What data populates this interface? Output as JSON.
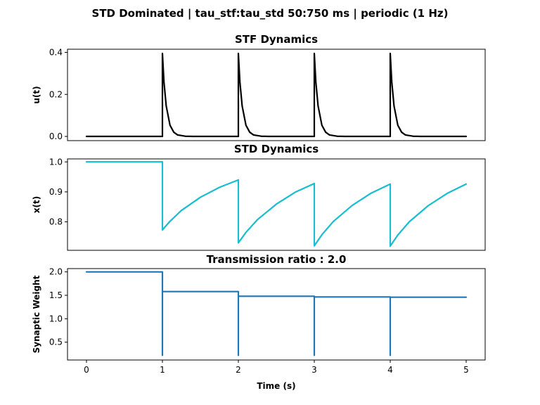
{
  "figure": {
    "title": "STD Dominated | tau_stf:tau_std 50:750 ms | periodic (1 Hz)"
  },
  "chart_data": [
    {
      "type": "line",
      "title": "STF Dynamics",
      "xlabel": "",
      "ylabel": "u(t)",
      "xlim": [
        -0.25,
        5.25
      ],
      "ylim": [
        -0.02,
        0.415
      ],
      "yticks": [
        0.0,
        0.2,
        0.4
      ],
      "ytick_labels": [
        "0.0",
        "0.2",
        "0.4"
      ],
      "xticks_visible": false,
      "grid": false,
      "color": "#000000",
      "spike_times": [
        1,
        2,
        3,
        4
      ],
      "x": [
        0,
        1,
        1,
        1.02,
        1.05,
        1.1,
        1.15,
        1.2,
        1.3,
        1.4,
        1.6,
        2,
        2,
        2.02,
        2.05,
        2.1,
        2.15,
        2.2,
        2.3,
        2.4,
        2.6,
        3,
        3,
        3.02,
        3.05,
        3.1,
        3.15,
        3.2,
        3.3,
        3.4,
        3.6,
        4,
        4,
        4.02,
        4.05,
        4.1,
        4.15,
        4.2,
        4.3,
        4.4,
        4.6,
        5
      ],
      "y": [
        0,
        0,
        0.395,
        0.26,
        0.145,
        0.053,
        0.02,
        0.007,
        0.001,
        0,
        0,
        0,
        0.395,
        0.26,
        0.145,
        0.053,
        0.02,
        0.007,
        0.001,
        0,
        0,
        0,
        0.395,
        0.26,
        0.145,
        0.053,
        0.02,
        0.007,
        0.001,
        0,
        0,
        0,
        0.395,
        0.26,
        0.145,
        0.053,
        0.02,
        0.007,
        0.001,
        0,
        0,
        0
      ]
    },
    {
      "type": "line",
      "title": "STD Dynamics",
      "xlabel": "",
      "ylabel": "x(t)",
      "xlim": [
        -0.25,
        5.25
      ],
      "ylim": [
        0.705,
        1.01
      ],
      "yticks": [
        0.8,
        0.9,
        1.0
      ],
      "ytick_labels": [
        "0.8",
        "0.9",
        "1.0"
      ],
      "xticks_visible": false,
      "grid": false,
      "color": "#17becf",
      "x": [
        0,
        1,
        1,
        1.1,
        1.25,
        1.5,
        1.75,
        2,
        2,
        2.1,
        2.25,
        2.5,
        2.75,
        3,
        3,
        3.1,
        3.25,
        3.5,
        3.75,
        4,
        4,
        4.1,
        4.25,
        4.5,
        4.75,
        5
      ],
      "y": [
        1.0,
        1.0,
        0.773,
        0.802,
        0.838,
        0.882,
        0.915,
        0.94,
        0.73,
        0.765,
        0.807,
        0.859,
        0.899,
        0.928,
        0.72,
        0.757,
        0.801,
        0.855,
        0.896,
        0.926,
        0.719,
        0.756,
        0.8,
        0.854,
        0.895,
        0.926
      ]
    },
    {
      "type": "line",
      "title": "Transmission ratio : 2.0",
      "xlabel": "Time (s)",
      "ylabel": "Synaptic Weight",
      "xlim": [
        -0.25,
        5.25
      ],
      "ylim": [
        0.12,
        2.07
      ],
      "yticks": [
        0.5,
        1.0,
        1.5,
        2.0
      ],
      "ytick_labels": [
        "0.5",
        "1.0",
        "1.5",
        "2.0"
      ],
      "xticks": [
        0,
        1,
        2,
        3,
        4,
        5
      ],
      "xtick_labels": [
        "0",
        "1",
        "2",
        "3",
        "4",
        "5"
      ],
      "grid": false,
      "color": "#1f77b4",
      "x": [
        0,
        1,
        1,
        1,
        2,
        2,
        2,
        3,
        3,
        3,
        4,
        4,
        4,
        5
      ],
      "y": [
        2.0,
        2.0,
        0.22,
        1.58,
        1.58,
        0.22,
        1.48,
        1.48,
        0.22,
        1.465,
        1.465,
        0.22,
        1.46,
        1.46
      ]
    }
  ]
}
